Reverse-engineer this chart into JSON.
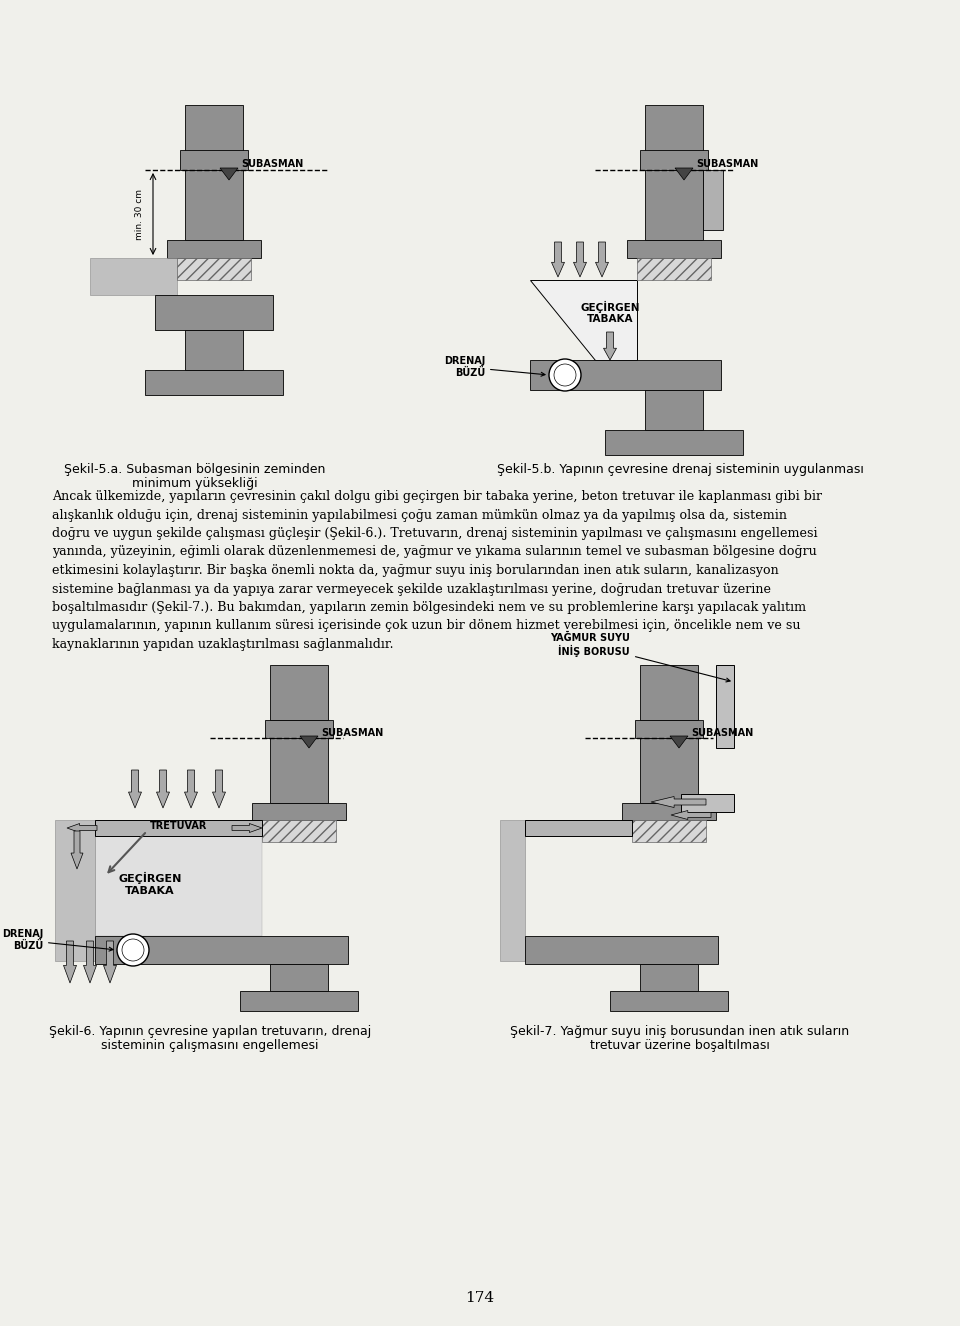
{
  "page_bg": "#f0f0eb",
  "wall_color": "#909090",
  "light_gray": "#c0c0c0",
  "hatch_fill": "#d8d8d8",
  "page_number": "174",
  "caption_5a_line1": "Şekil-5.a. Subasman bölgesinin zeminden",
  "caption_5a_line2": "minimum yüksekliği",
  "caption_5b": "Şekil-5.b. Yapının çevresine drenaj sisteminin uygulanması",
  "caption_6_line1": "Şekil-6. Yapının çevresine yapılan tretuvarın, drenaj",
  "caption_6_line2": "sisteminin çalışmasını engellemesi",
  "caption_7_line1": "Şekil-7. Yağmur suyu iniş borusundan inen atık suların",
  "caption_7_line2": "tretuvar üzerine boşaltılması",
  "body_lines": [
    "Ancak ülkemizde, yapıların çevresinin çakıl dolgu gibi geçirgen bir tabaka yerine, beton tretuvar ile kaplanması gibi bir",
    "alışkanlık olduğu için, drenaj sisteminin yapılabilmesi çoğu zaman mümkün olmaz ya da yapılmış olsa da, sistemin",
    "doğru ve uygun şekilde çalışması güçleşir (Şekil-6.). Tretuvarın, drenaj sisteminin yapılması ve çalışmasını engellemesi",
    "yanında, yüzeyinin, eğimli olarak düzenlenmemesi de, yağmur ve yıkama sularının temel ve subasman bölgesine doğru",
    "etkimesini kolaylaştırır. Bir başka önemli nokta da, yağmur suyu iniş borularından inen atık suların, kanalizasyon",
    "sistemine bağlanması ya da yapıya zarar vermeyecek şekilde uzaklaştırılması yerine, doğrudan tretuvar üzerine",
    "boşaltılmasıdır (Şekil-7.). Bu bakımdan, yapıların zemin bölgesindeki nem ve su problemlerine karşı yapılacak yalıtım",
    "uygulamalarının, yapının kullanım süresi içerisinde çok uzun bir dönem hizmet verebilmesi için, öncelikle nem ve su",
    "kaynaklarının yapıdan uzaklaştırılması sağlanmalıdır."
  ]
}
